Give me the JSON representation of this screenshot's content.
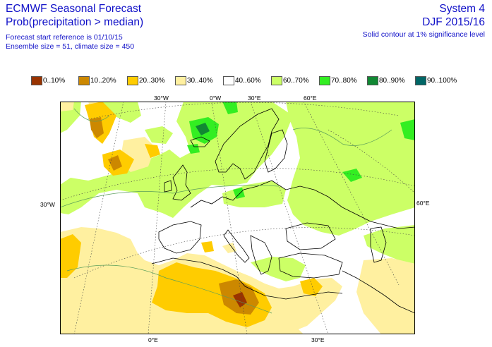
{
  "header": {
    "title_line1": "ECMWF Seasonal Forecast",
    "title_line2": "Prob(precipitation > median)",
    "forecast_start": "Forecast start reference is 01/10/15",
    "ensemble": "Ensemble size = 51, climate size = 450",
    "system": "System 4",
    "season": "DJF 2015/16",
    "contour_note": "Solid contour at 1% significance level"
  },
  "legend": [
    {
      "label": "0..10%",
      "color": "#993300"
    },
    {
      "label": "10..20%",
      "color": "#cc8800"
    },
    {
      "label": "20..30%",
      "color": "#ffcc00"
    },
    {
      "label": "30..40%",
      "color": "#fff0a0"
    },
    {
      "label": "40..60%",
      "color": "#ffffff"
    },
    {
      "label": "60..70%",
      "color": "#ccff66"
    },
    {
      "label": "70..80%",
      "color": "#33ee22"
    },
    {
      "label": "80..90%",
      "color": "#118833"
    },
    {
      "label": "90..100%",
      "color": "#006666"
    }
  ],
  "graticule": {
    "top": [
      "30°W",
      "0°W",
      "30°E",
      "60°E"
    ],
    "left": "30°W",
    "right": "60°E",
    "bottom": [
      "0°E",
      "30°E"
    ]
  }
}
